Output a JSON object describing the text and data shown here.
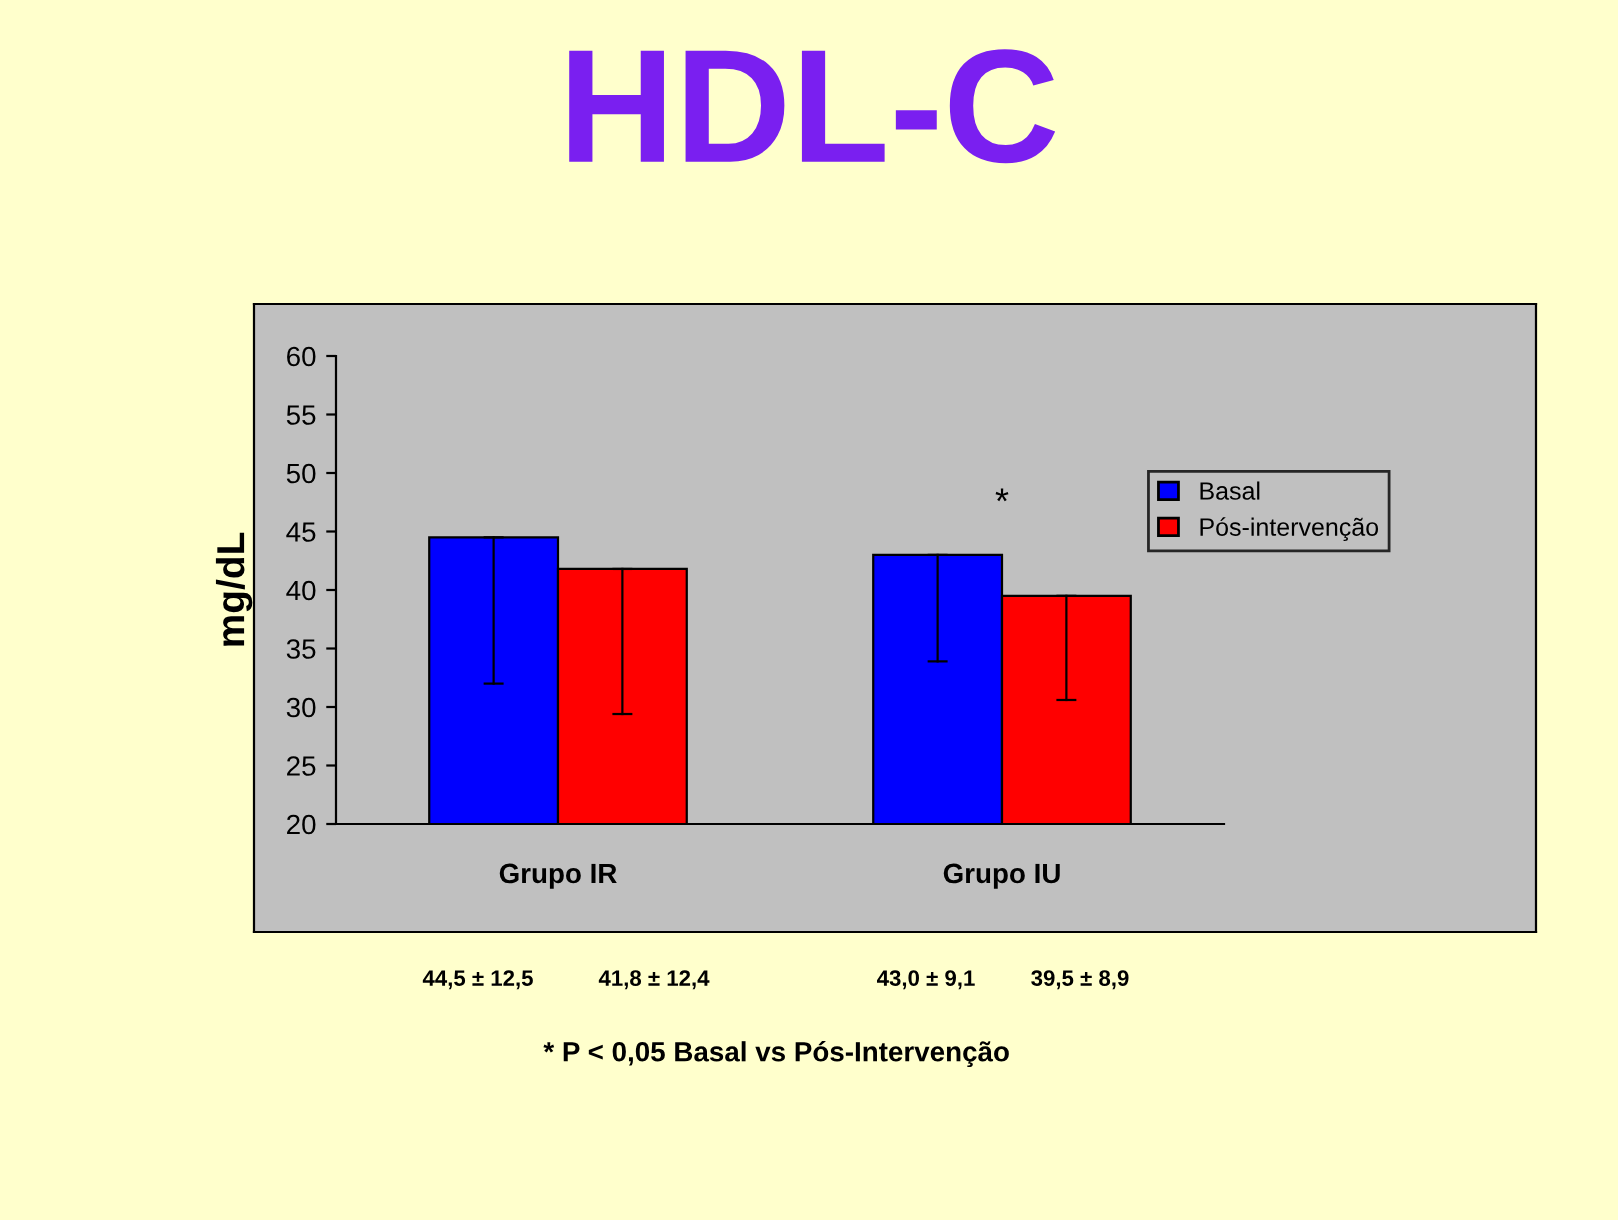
{
  "chart_data": {
    "type": "bar",
    "title": "HDL-C",
    "ylabel": "mg/dL",
    "categories": [
      "Grupo IR",
      "Grupo IU"
    ],
    "series": [
      {
        "name": "Basal",
        "color": "#0000ff",
        "values": [
          44.5,
          43.0
        ],
        "errors": [
          [
            32.0,
            44.5
          ],
          [
            33.9,
            43.0
          ]
        ]
      },
      {
        "name": "Pós-intervenção",
        "color": "#ff0000",
        "values": [
          41.8,
          39.5
        ],
        "errors": [
          [
            29.4,
            41.8
          ],
          [
            30.6,
            39.5
          ]
        ]
      }
    ],
    "ylim": [
      20,
      60
    ],
    "yticks": [
      20,
      25,
      30,
      35,
      40,
      45,
      50,
      55,
      60
    ],
    "grid": false,
    "legend": "right",
    "annotations": [
      "44,5 ± 12,5",
      "41,8 ± 12,4",
      "43,0 ± 9,1",
      "39,5 ± 8,9",
      "*",
      "* P < 0,05 Basal vs Pós-Intervenção"
    ]
  }
}
